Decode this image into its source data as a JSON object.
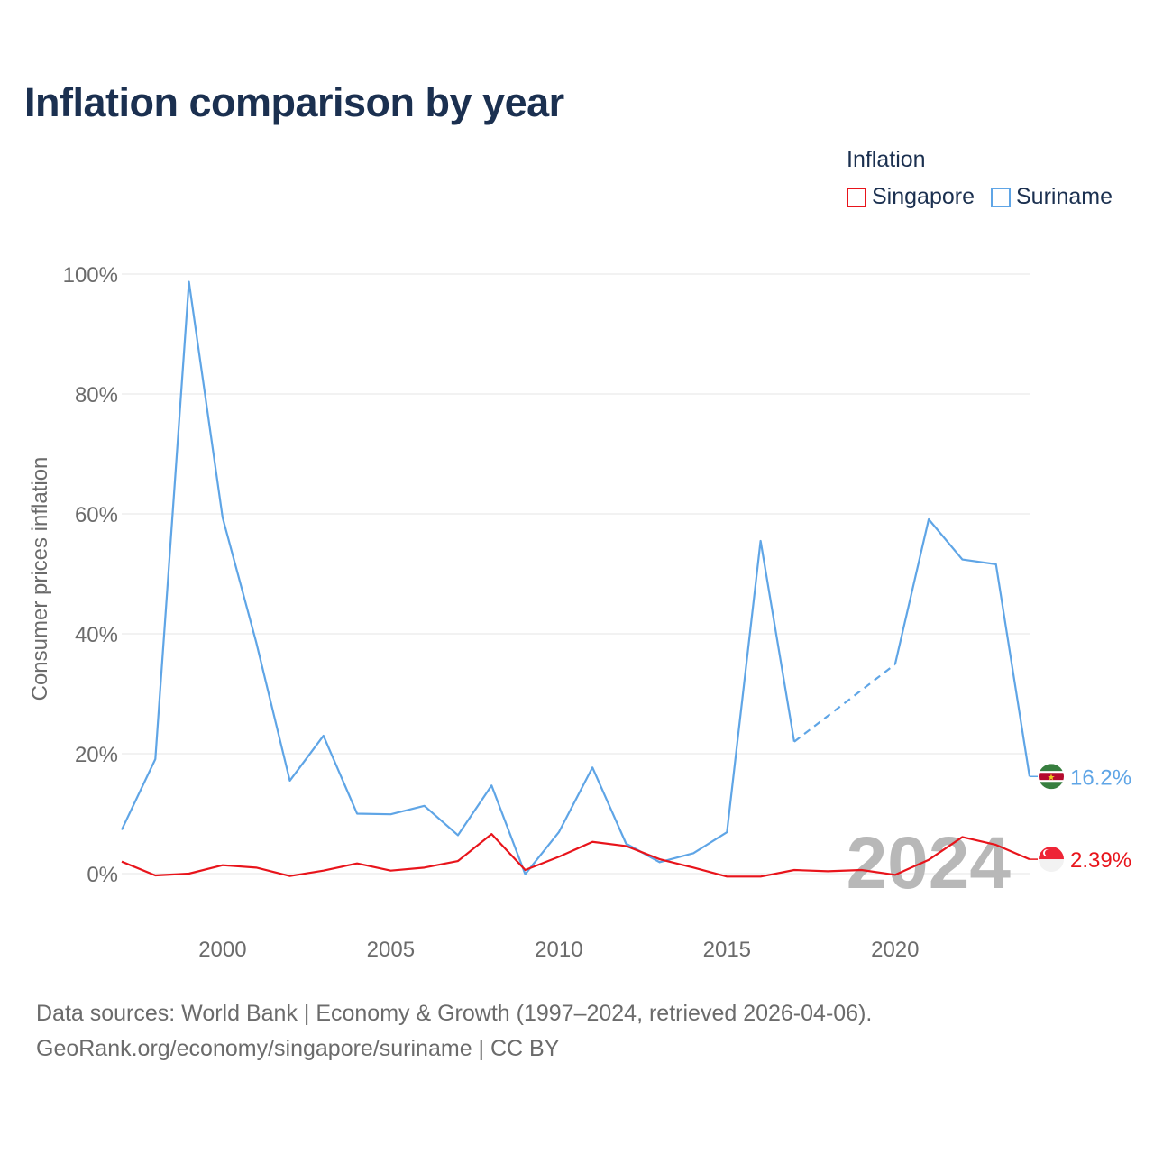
{
  "title": "Inflation comparison by year",
  "legend": {
    "title": "Inflation",
    "items": [
      {
        "label": "Singapore",
        "color": "#e8141b"
      },
      {
        "label": "Suriname",
        "color": "#5fa5e6"
      }
    ]
  },
  "footer": {
    "line1": "Data sources: World Bank | Economy & Growth (1997–2024, retrieved 2026-04-06).",
    "line2": "GeoRank.org/economy/singapore/suriname | CC BY"
  },
  "chart_data": {
    "type": "line",
    "title": "Inflation comparison by year",
    "xlabel": "",
    "ylabel": "Consumer prices inflation",
    "xlim": [
      1997,
      2024
    ],
    "ylim": [
      -10,
      100
    ],
    "yticks": [
      0,
      20,
      40,
      60,
      80,
      100
    ],
    "ytick_labels": [
      "0%",
      "20%",
      "40%",
      "60%",
      "80%",
      "100%"
    ],
    "xticks": [
      2000,
      2005,
      2010,
      2015,
      2020
    ],
    "xtick_labels": [
      "2000",
      "2005",
      "2010",
      "2015",
      "2020"
    ],
    "year_watermark": "2024",
    "grid": true,
    "series": [
      {
        "name": "Suriname",
        "color": "#5fa5e6",
        "end_label": "16.2%",
        "flag_icon": "suriname-flag-icon",
        "x": [
          1997,
          1998,
          1999,
          2000,
          2001,
          2002,
          2003,
          2004,
          2005,
          2006,
          2007,
          2008,
          2009,
          2010,
          2011,
          2012,
          2013,
          2014,
          2015,
          2016,
          2017,
          2020,
          2021,
          2022,
          2023,
          2024
        ],
        "values": [
          7.3,
          19.1,
          98.7,
          59.4,
          38.6,
          15.5,
          23.0,
          10.0,
          9.9,
          11.3,
          6.4,
          14.7,
          -0.1,
          6.9,
          17.7,
          5.0,
          1.9,
          3.4,
          6.9,
          55.5,
          22.0,
          34.9,
          59.1,
          52.4,
          51.6,
          16.2
        ],
        "gap_segment_from_year": 2017,
        "gap_segment_to_year": 2020,
        "gap_style": "dashed"
      },
      {
        "name": "Singapore",
        "color": "#e8141b",
        "end_label": "2.39%",
        "flag_icon": "singapore-flag-icon",
        "x": [
          1997,
          1998,
          1999,
          2000,
          2001,
          2002,
          2003,
          2004,
          2005,
          2006,
          2007,
          2008,
          2009,
          2010,
          2011,
          2012,
          2013,
          2014,
          2015,
          2016,
          2017,
          2018,
          2019,
          2020,
          2021,
          2022,
          2023,
          2024
        ],
        "values": [
          2.0,
          -0.3,
          0.0,
          1.4,
          1.0,
          -0.4,
          0.5,
          1.7,
          0.5,
          1.0,
          2.1,
          6.6,
          0.6,
          2.8,
          5.3,
          4.6,
          2.4,
          1.0,
          -0.5,
          -0.5,
          0.6,
          0.4,
          0.6,
          -0.2,
          2.3,
          6.1,
          4.8,
          2.39
        ]
      }
    ]
  }
}
